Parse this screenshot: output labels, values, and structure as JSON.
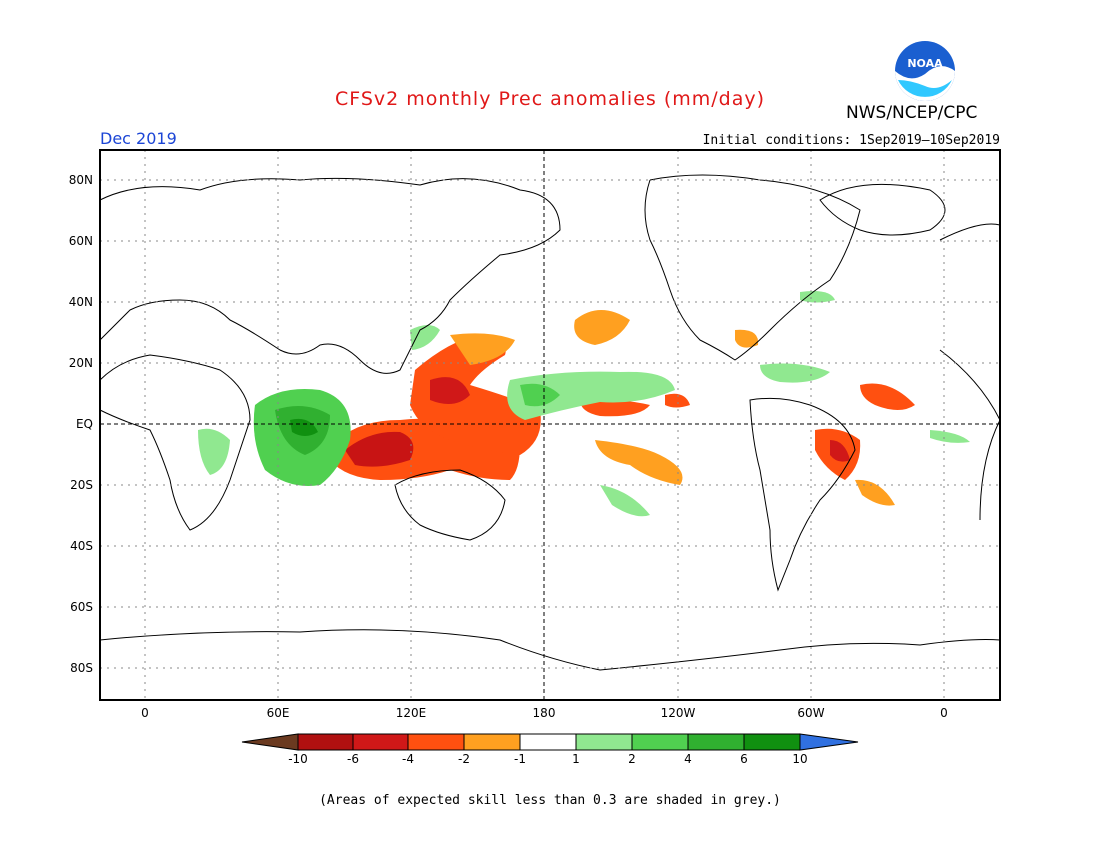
{
  "header": {
    "title": "CFSv2 monthly Prec anomalies (mm/day)",
    "agency": "NWS/NCEP/CPC",
    "logo_text": "NOAA",
    "valid_month": "Dec 2019",
    "initial_conditions": "Initial conditions: 1Sep2019–10Sep2019"
  },
  "axes": {
    "lat_labels": [
      "80N",
      "60N",
      "40N",
      "20N",
      "EQ",
      "20S",
      "40S",
      "60S",
      "80S"
    ],
    "lon_labels": [
      "0",
      "60E",
      "120E",
      "180",
      "120W",
      "60W",
      "0"
    ]
  },
  "colorbar": {
    "labels": [
      "-10",
      "-6",
      "-4",
      "-2",
      "-1",
      "1",
      "2",
      "4",
      "6",
      "10"
    ],
    "colors": [
      "#6b3a20",
      "#b01010",
      "#d01818",
      "#ff5010",
      "#ffa020",
      "#ffffff",
      "#90e890",
      "#50d050",
      "#30b030",
      "#109010",
      "#3070e0"
    ]
  },
  "footnote": "(Areas of expected skill less than 0.3 are shaded in grey.)"
}
